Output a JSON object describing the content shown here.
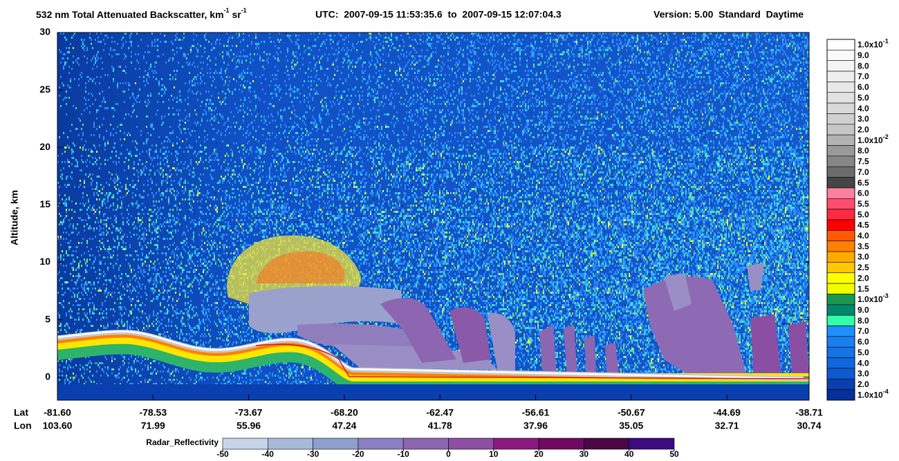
{
  "chart_data": {
    "type": "heatmap",
    "title": {
      "text": "532 nm Total Attenuated Backscatter, km",
      "exp1": "-1",
      "unit2": " sr",
      "exp2": "-1"
    },
    "utc": "UTC:  2007-09-15 11:53:35.6  to  2007-09-15 12:07:04.3",
    "version": "Version: 5.00  Standard  Daytime",
    "ylabel": "Altitude, km",
    "ylim": [
      -2,
      30
    ],
    "yticks": [
      0,
      5,
      10,
      15,
      20,
      25,
      30
    ],
    "x_rows": {
      "lat_label": "Lat",
      "lon_label": "Lon",
      "lat": [
        "-81.60",
        "-78.53",
        "-73.67",
        "-68.20",
        "-62.47",
        "-56.61",
        "-50.67",
        "-44.69",
        "-38.71"
      ],
      "lon": [
        "103.60",
        "71.99",
        "55.96",
        "47.24",
        "41.78",
        "37.96",
        "35.05",
        "32.71",
        "30.74"
      ]
    },
    "colorbar": [
      {
        "label": "1.0x10",
        "exp": "-1",
        "color": "#ffffff"
      },
      {
        "label": "9.0",
        "color": "#fafafa"
      },
      {
        "label": "8.0",
        "color": "#f4f4f4"
      },
      {
        "label": "7.0",
        "color": "#eeeeee"
      },
      {
        "label": "6.0",
        "color": "#e8e8e8"
      },
      {
        "label": "5.0",
        "color": "#e1e1e1"
      },
      {
        "label": "4.0",
        "color": "#d9d9d9"
      },
      {
        "label": "3.0",
        "color": "#d0d0d0"
      },
      {
        "label": "2.0",
        "color": "#c6c6c6"
      },
      {
        "label": "1.0x10",
        "exp": "-2",
        "color": "#b3b3b3"
      },
      {
        "label": "8.0",
        "color": "#9a9a9a"
      },
      {
        "label": "7.5",
        "color": "#868686"
      },
      {
        "label": "7.0",
        "color": "#6c6c6c"
      },
      {
        "label": "6.5",
        "color": "#454545"
      },
      {
        "label": "6.0",
        "color": "#ff7fa0"
      },
      {
        "label": "5.5",
        "color": "#ff4d6d"
      },
      {
        "label": "5.0",
        "color": "#ff2a42"
      },
      {
        "label": "4.5",
        "color": "#ff0000"
      },
      {
        "label": "4.0",
        "color": "#ff5a00"
      },
      {
        "label": "3.5",
        "color": "#ff8000"
      },
      {
        "label": "3.0",
        "color": "#ffaa00"
      },
      {
        "label": "2.5",
        "color": "#ffc800"
      },
      {
        "label": "2.0",
        "color": "#ffff00"
      },
      {
        "label": "1.5",
        "color": "#f0ff00"
      },
      {
        "label": "1.0x10",
        "exp": "-3",
        "color": "#1a9850"
      },
      {
        "label": "9.0",
        "color": "#00876e"
      },
      {
        "label": "8.0",
        "color": "#33ffaa"
      },
      {
        "label": "7.0",
        "color": "#1e90ff"
      },
      {
        "label": "6.0",
        "color": "#1a80f2"
      },
      {
        "label": "5.0",
        "color": "#1673e6"
      },
      {
        "label": "4.0",
        "color": "#1166dd"
      },
      {
        "label": "3.0",
        "color": "#0d5ad0"
      },
      {
        "label": "2.0",
        "color": "#0a3fb0"
      },
      {
        "label": "1.0x10",
        "exp": "-4",
        "color": "#072f9a"
      }
    ],
    "radar_colorbar": {
      "name": "Radar_Reflectivity",
      "ticks": [
        -50,
        -40,
        -30,
        -20,
        -10,
        0,
        10,
        20,
        30,
        40,
        50
      ],
      "colors": [
        "#c6d5e8",
        "#a8bad9",
        "#8ea0cc",
        "#8a7fc0",
        "#8c66b0",
        "#8a4fa3",
        "#8a1a7e",
        "#6e0a60",
        "#4a0844",
        "#3d0a80"
      ]
    }
  }
}
